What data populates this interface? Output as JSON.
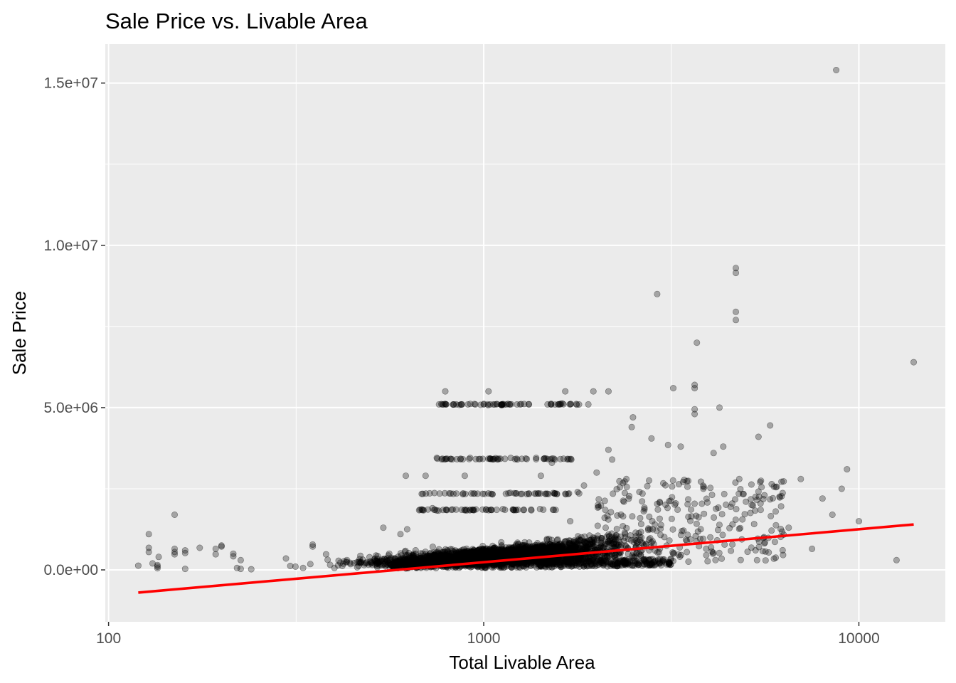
{
  "chart_data": {
    "type": "scatter",
    "title": "Sale Price vs. Livable Area",
    "xlabel": "Total Livable Area",
    "ylabel": "Sale Price",
    "x_scale": "log10",
    "x_ticks": [
      100,
      1000,
      10000
    ],
    "x_tick_labels": [
      "100",
      "1000",
      "10000"
    ],
    "x_minor_ticks": [
      316.2,
      3162.3
    ],
    "y_ticks": [
      0,
      5000000,
      10000000,
      15000000
    ],
    "y_tick_labels": [
      "0.0e+00",
      "5.0e+06",
      "1.0e+07",
      "1.5e+07"
    ],
    "xlim": [
      98,
      17000
    ],
    "ylim": [
      -1600000,
      16200000
    ],
    "grid": true,
    "background": "#ebebeb",
    "point_color": "#000000",
    "point_alpha": 0.3,
    "fit_color": "#ff0000",
    "fit_line": {
      "x": [
        120,
        14000
      ],
      "y": [
        -700000,
        1400000
      ]
    },
    "points": [
      [
        120,
        130000
      ],
      [
        128,
        1100000
      ],
      [
        128,
        550000
      ],
      [
        128,
        680000
      ],
      [
        131,
        200000
      ],
      [
        135,
        50000
      ],
      [
        135,
        150000
      ],
      [
        135,
        100000
      ],
      [
        136,
        400000
      ],
      [
        150,
        1700000
      ],
      [
        150,
        550000
      ],
      [
        150,
        480000
      ],
      [
        150,
        650000
      ],
      [
        160,
        600000
      ],
      [
        160,
        520000
      ],
      [
        160,
        30000
      ],
      [
        175,
        680000
      ],
      [
        193,
        650000
      ],
      [
        193,
        480000
      ],
      [
        200,
        750000
      ],
      [
        200,
        720000
      ],
      [
        215,
        500000
      ],
      [
        215,
        420000
      ],
      [
        220,
        60000
      ],
      [
        225,
        300000
      ],
      [
        225,
        30000
      ],
      [
        240,
        20000
      ],
      [
        297,
        350000
      ],
      [
        305,
        120000
      ],
      [
        315,
        100000
      ],
      [
        330,
        60000
      ],
      [
        345,
        180000
      ],
      [
        350,
        780000
      ],
      [
        350,
        720000
      ],
      [
        380,
        480000
      ],
      [
        400,
        60000
      ],
      [
        420,
        120000
      ],
      [
        440,
        220000
      ],
      [
        460,
        80000
      ],
      [
        480,
        150000
      ],
      [
        500,
        250000
      ],
      [
        520,
        120000
      ],
      [
        540,
        1300000
      ],
      [
        560,
        500000
      ],
      [
        580,
        200000
      ],
      [
        600,
        1100000
      ],
      [
        620,
        2900000
      ],
      [
        625,
        1250000
      ],
      [
        650,
        400000
      ],
      [
        700,
        2900000
      ],
      [
        730,
        1900000
      ],
      [
        750,
        3450000
      ],
      [
        760,
        5100000
      ],
      [
        775,
        5100000
      ],
      [
        790,
        5500000
      ],
      [
        820,
        1850000
      ],
      [
        845,
        5100000
      ],
      [
        870,
        5100000
      ],
      [
        890,
        2900000
      ],
      [
        920,
        3450000
      ],
      [
        950,
        5100000
      ],
      [
        1000,
        5100000
      ],
      [
        1030,
        5500000
      ],
      [
        1060,
        5100000
      ],
      [
        1090,
        3400000
      ],
      [
        1120,
        5100000
      ],
      [
        1150,
        5100000
      ],
      [
        1180,
        3450000
      ],
      [
        1250,
        5100000
      ],
      [
        1320,
        5100000
      ],
      [
        1380,
        3450000
      ],
      [
        1420,
        2900000
      ],
      [
        1480,
        5100000
      ],
      [
        1520,
        3300000
      ],
      [
        1600,
        5100000
      ],
      [
        1650,
        5500000
      ],
      [
        1700,
        1500000
      ],
      [
        1780,
        2400000
      ],
      [
        1850,
        2600000
      ],
      [
        1900,
        5100000
      ],
      [
        1960,
        5500000
      ],
      [
        2000,
        3000000
      ],
      [
        2150,
        3700000
      ],
      [
        2150,
        5500000
      ],
      [
        2200,
        3400000
      ],
      [
        2400,
        2800000
      ],
      [
        2480,
        4400000
      ],
      [
        2500,
        4700000
      ],
      [
        2600,
        2400000
      ],
      [
        2800,
        4050000
      ],
      [
        2900,
        8500000
      ],
      [
        3100,
        3850000
      ],
      [
        3200,
        5600000
      ],
      [
        3350,
        3800000
      ],
      [
        3650,
        5700000
      ],
      [
        3650,
        5600000
      ],
      [
        3650,
        4950000
      ],
      [
        3650,
        4800000
      ],
      [
        3700,
        7000000
      ],
      [
        3850,
        2500000
      ],
      [
        4100,
        3600000
      ],
      [
        4250,
        5000000
      ],
      [
        4350,
        3800000
      ],
      [
        4700,
        9300000
      ],
      [
        4700,
        9150000
      ],
      [
        4700,
        7950000
      ],
      [
        4700,
        7700000
      ],
      [
        4800,
        2800000
      ],
      [
        5000,
        2100000
      ],
      [
        5400,
        4100000
      ],
      [
        5800,
        4450000
      ],
      [
        6000,
        1800000
      ],
      [
        6500,
        1300000
      ],
      [
        7000,
        2800000
      ],
      [
        7500,
        650000
      ],
      [
        8000,
        2200000
      ],
      [
        8500,
        1700000
      ],
      [
        8700,
        15400000
      ],
      [
        9000,
        2500000
      ],
      [
        9300,
        3100000
      ],
      [
        10000,
        1500000
      ],
      [
        12600,
        300000
      ],
      [
        14000,
        6400000
      ]
    ],
    "dense_cloud": {
      "note_free": true
    }
  }
}
